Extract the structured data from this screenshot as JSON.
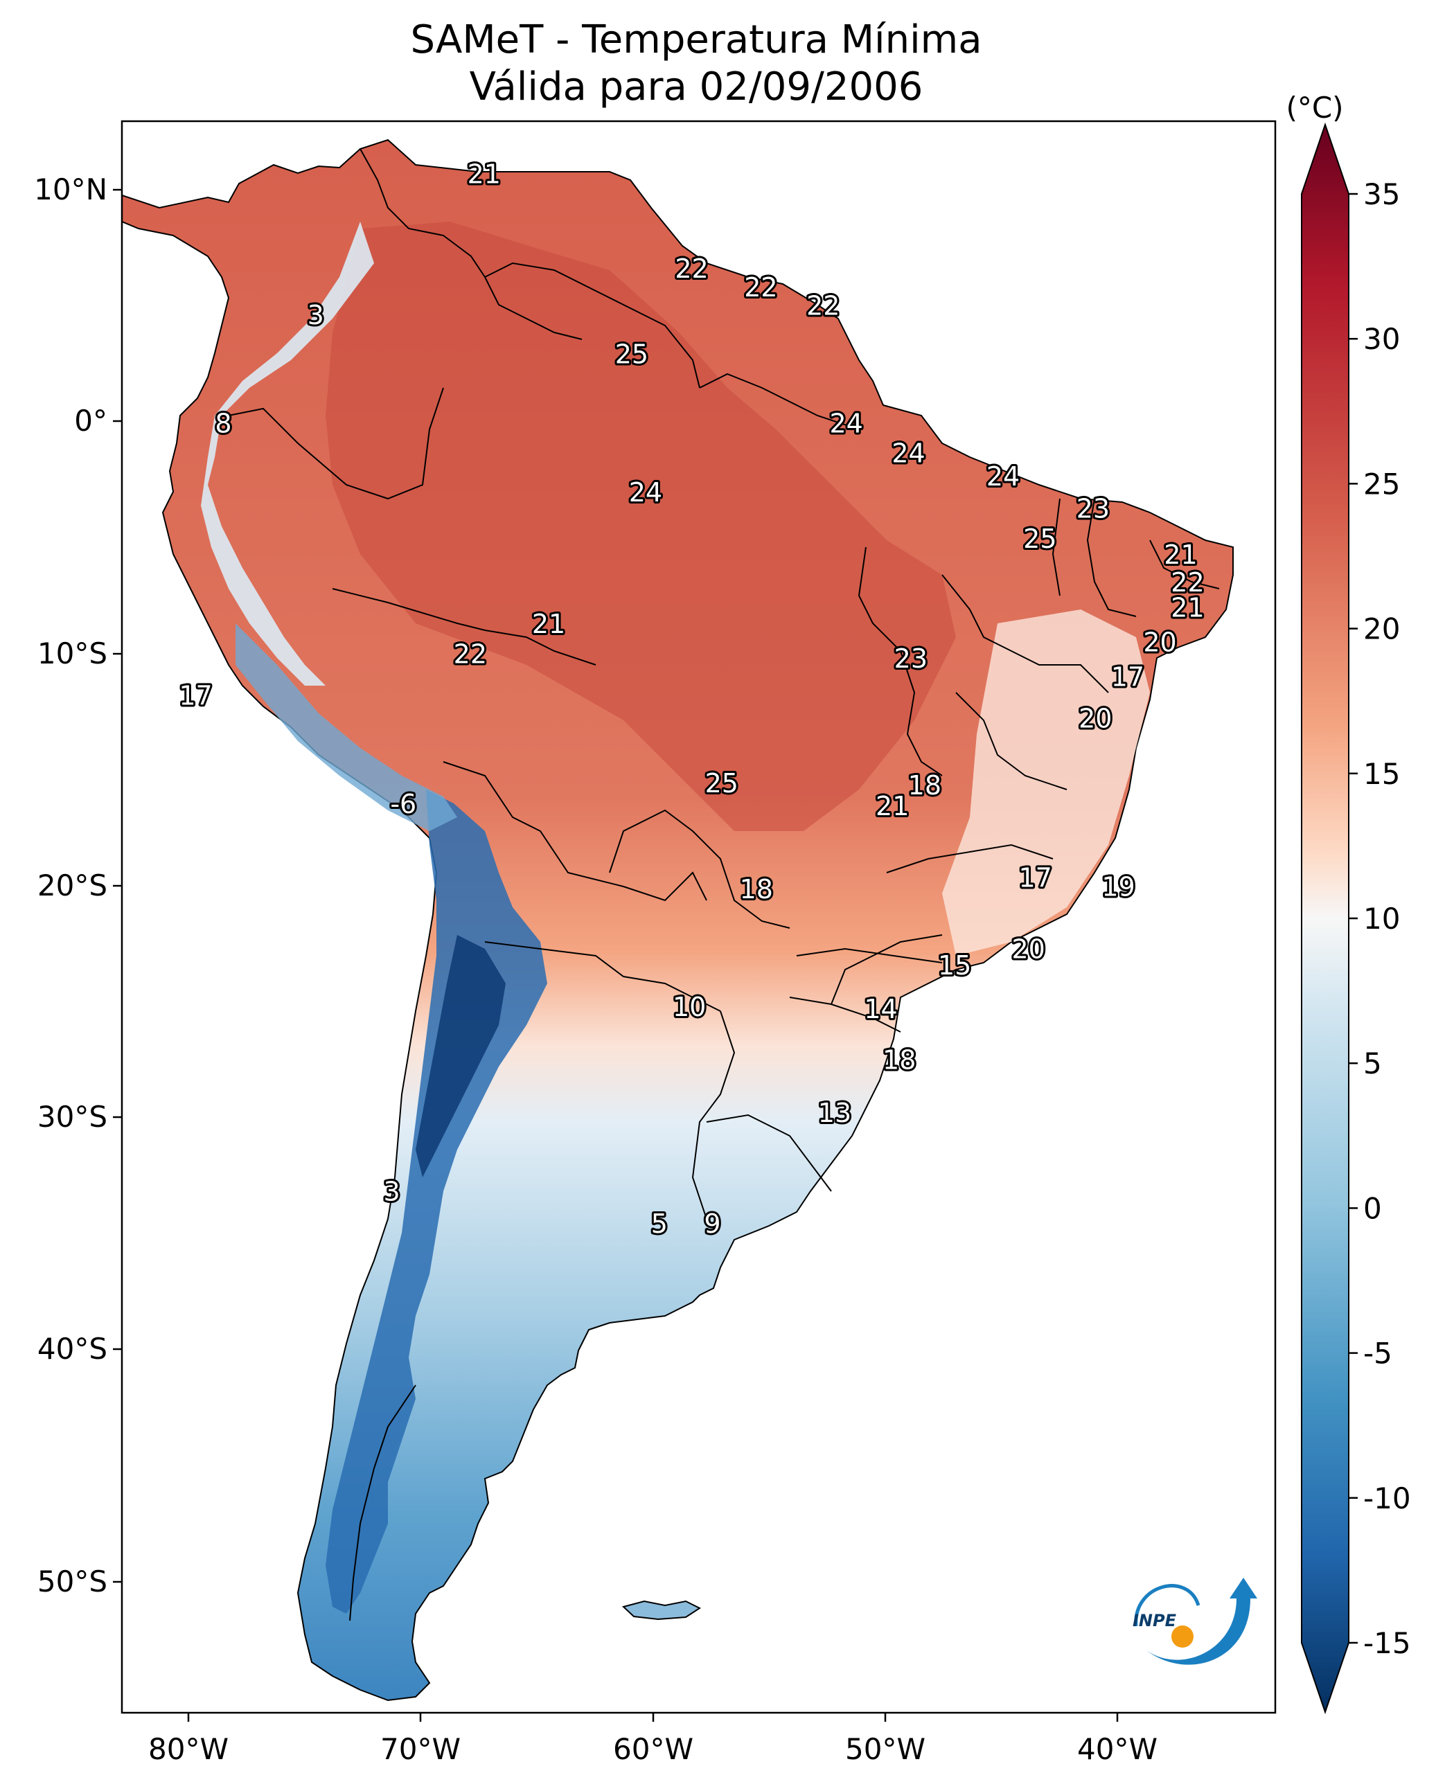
{
  "title": {
    "line1": "SAMeT - Temperatura Mínima",
    "line2": "Válida para 02/09/2006"
  },
  "colorbar": {
    "unit": "(°C)",
    "ticks": [
      "35",
      "30",
      "25",
      "20",
      "15",
      "10",
      "5",
      "0",
      "-5",
      "-10",
      "-15"
    ],
    "range": [
      -15,
      35
    ]
  },
  "axes": {
    "lon_labels": [
      "80°W",
      "70°W",
      "60°W",
      "50°W",
      "40°W"
    ],
    "lat_labels": [
      "10°N",
      "0°",
      "10°S",
      "20°S",
      "30°S",
      "40°S",
      "50°S"
    ],
    "lon_range": [
      -83,
      -33
    ],
    "lat_range": [
      -56,
      13
    ]
  },
  "logo": {
    "text": "INPE",
    "colors": [
      "#1a7fc1",
      "#f39c12"
    ]
  },
  "contour_labels": [
    {
      "value": "21",
      "lon": -67.3,
      "lat": 10.7
    },
    {
      "value": "22",
      "lon": -58.3,
      "lat": 6.6
    },
    {
      "value": "22",
      "lon": -55.3,
      "lat": 5.8
    },
    {
      "value": "22",
      "lon": -52.6,
      "lat": 5.0
    },
    {
      "value": "3",
      "lon": -74.6,
      "lat": 4.6
    },
    {
      "value": "25",
      "lon": -60.9,
      "lat": 2.9
    },
    {
      "value": "8",
      "lon": -78.6,
      "lat": -0.1
    },
    {
      "value": "24",
      "lon": -51.6,
      "lat": -0.1
    },
    {
      "value": "24",
      "lon": -48.9,
      "lat": -1.4
    },
    {
      "value": "24",
      "lon": -44.8,
      "lat": -2.4
    },
    {
      "value": "24",
      "lon": -60.3,
      "lat": -3.1
    },
    {
      "value": "23",
      "lon": -40.9,
      "lat": -3.8
    },
    {
      "value": "25",
      "lon": -43.2,
      "lat": -5.1
    },
    {
      "value": "21",
      "lon": -37.1,
      "lat": -5.8
    },
    {
      "value": "22",
      "lon": -36.8,
      "lat": -7.0
    },
    {
      "value": "21",
      "lon": -36.8,
      "lat": -8.1
    },
    {
      "value": "21",
      "lon": -64.5,
      "lat": -8.8
    },
    {
      "value": "20",
      "lon": -38.0,
      "lat": -9.6
    },
    {
      "value": "22",
      "lon": -67.9,
      "lat": -10.1
    },
    {
      "value": "23",
      "lon": -48.8,
      "lat": -10.3
    },
    {
      "value": "17",
      "lon": -39.4,
      "lat": -11.1
    },
    {
      "value": "17",
      "lon": -79.8,
      "lat": -11.9
    },
    {
      "value": "20",
      "lon": -40.8,
      "lat": -12.9
    },
    {
      "value": "25",
      "lon": -57.0,
      "lat": -15.7
    },
    {
      "value": "18",
      "lon": -48.2,
      "lat": -15.8
    },
    {
      "value": "-6",
      "lon": -70.8,
      "lat": -16.6
    },
    {
      "value": "21",
      "lon": -49.6,
      "lat": -16.7
    },
    {
      "value": "17",
      "lon": -43.4,
      "lat": -19.8
    },
    {
      "value": "19",
      "lon": -39.8,
      "lat": -20.2
    },
    {
      "value": "18",
      "lon": -55.5,
      "lat": -20.3
    },
    {
      "value": "20",
      "lon": -43.7,
      "lat": -22.9
    },
    {
      "value": "15",
      "lon": -46.9,
      "lat": -23.6
    },
    {
      "value": "10",
      "lon": -58.4,
      "lat": -25.4
    },
    {
      "value": "14",
      "lon": -50.1,
      "lat": -25.5
    },
    {
      "value": "18",
      "lon": -49.3,
      "lat": -27.7
    },
    {
      "value": "13",
      "lon": -52.1,
      "lat": -30.0
    },
    {
      "value": "3",
      "lon": -71.3,
      "lat": -33.4
    },
    {
      "value": "5",
      "lon": -59.7,
      "lat": -34.8
    },
    {
      "value": "9",
      "lon": -57.4,
      "lat": -34.8
    }
  ]
}
